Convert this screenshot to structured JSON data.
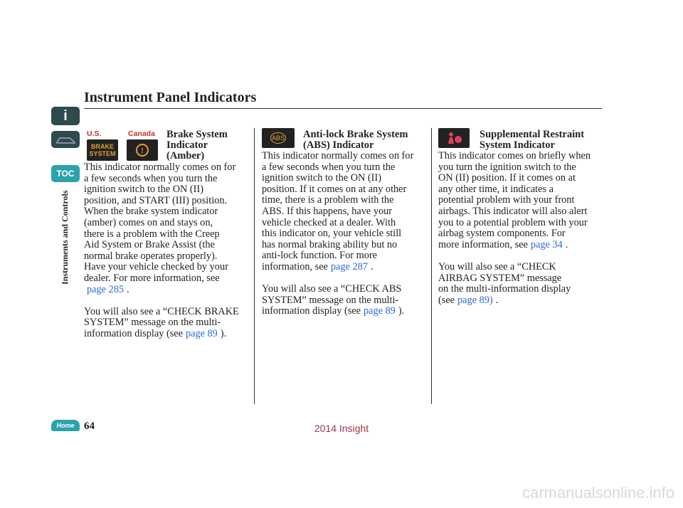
{
  "header": {
    "title": "Instrument Panel Indicators"
  },
  "sidebar": {
    "info_icon": "i",
    "toc_icon": "TOC",
    "section": "Instruments and Controls",
    "home_icon": "Home",
    "page_number": "64"
  },
  "footer": {
    "model": "2014 Insight",
    "watermark": "carmanualsonline.info"
  },
  "columns": [
    {
      "labels": [
        "U.S.",
        "Canada"
      ],
      "icon_text": "BRAKE SYSTEM",
      "heading": [
        "Brake System",
        "Indicator",
        "(Amber)"
      ],
      "paragraphs": [
        [
          [
            {
              "t": "This indicator normally comes on for"
            }
          ],
          [
            {
              "t": "a few seconds when you turn the"
            }
          ],
          [
            {
              "t": "ignition switch to the ON (II)"
            }
          ],
          [
            {
              "t": "position, and START (III) position."
            }
          ],
          [
            {
              "t": "When the brake system indicator"
            }
          ],
          [
            {
              "t": "(amber) comes on and stays on,"
            }
          ],
          [
            {
              "t": "there is a problem with the Creep"
            }
          ],
          [
            {
              "t": "Aid System or Brake Assist (the"
            }
          ],
          [
            {
              "t": "normal brake operates properly)."
            }
          ],
          [
            {
              "t": "Have your vehicle checked by your"
            }
          ],
          [
            {
              "t": "dealer. For more information, see"
            }
          ],
          [
            {
              "link": "page 285"
            },
            {
              "t": "."
            }
          ]
        ],
        [
          [
            {
              "t": "You will also see a “CHECK BRAKE"
            }
          ],
          [
            {
              "t": "SYSTEM” message on the multi-"
            }
          ],
          [
            {
              "t": "information display (see"
            },
            {
              "link": "page 89"
            },
            {
              "t": ")."
            }
          ]
        ]
      ]
    },
    {
      "icon_text": "ABS",
      "heading": [
        "Anti-lock Brake System",
        "(ABS) Indicator"
      ],
      "paragraphs": [
        [
          [
            {
              "t": "This indicator normally comes on for"
            }
          ],
          [
            {
              "t": "a few seconds when you turn the"
            }
          ],
          [
            {
              "t": "ignition switch to the ON (II)"
            }
          ],
          [
            {
              "t": "position. If it comes on at any other"
            }
          ],
          [
            {
              "t": "time, there is a problem with the"
            }
          ],
          [
            {
              "t": "ABS. If this happens, have your"
            }
          ],
          [
            {
              "t": "vehicle checked at a dealer. With"
            }
          ],
          [
            {
              "t": "this indicator on, your vehicle still"
            }
          ],
          [
            {
              "t": "has normal braking ability but no"
            }
          ],
          [
            {
              "t": "anti-lock function. For more"
            }
          ],
          [
            {
              "t": "information, see"
            },
            {
              "link": "page 287"
            },
            {
              "t": "."
            }
          ]
        ],
        [
          [
            {
              "t": "You will also see a “CHECK ABS"
            }
          ],
          [
            {
              "t": "SYSTEM” message on the multi-"
            }
          ],
          [
            {
              "t": "information display (see"
            },
            {
              "link": "page 89"
            },
            {
              "t": ")."
            }
          ]
        ]
      ]
    },
    {
      "heading": [
        "Supplemental Restraint",
        "System Indicator"
      ],
      "paragraphs": [
        [
          [
            {
              "t": "This indicator comes on briefly when"
            }
          ],
          [
            {
              "t": "you turn the ignition switch to the"
            }
          ],
          [
            {
              "t": "ON (II) position. If it comes on at"
            }
          ],
          [
            {
              "t": "any other time, it indicates a"
            }
          ],
          [
            {
              "t": "potential problem with your front"
            }
          ],
          [
            {
              "t": "airbags. This indicator will also alert"
            }
          ],
          [
            {
              "t": "you to a potential problem with your"
            }
          ],
          [
            {
              "t": "airbag system components. For"
            }
          ],
          [
            {
              "t": "more information, see"
            },
            {
              "link": "page 34"
            },
            {
              "t": "."
            }
          ]
        ],
        [
          [
            {
              "t": "You will also see a “CHECK"
            }
          ],
          [
            {
              "t": "AIRBAG SYSTEM” message"
            }
          ],
          [
            {
              "t": "on the multi-information display"
            }
          ],
          [
            {
              "t": "(see"
            },
            {
              "link": "page 89)"
            },
            {
              "t": "."
            }
          ]
        ]
      ]
    }
  ]
}
